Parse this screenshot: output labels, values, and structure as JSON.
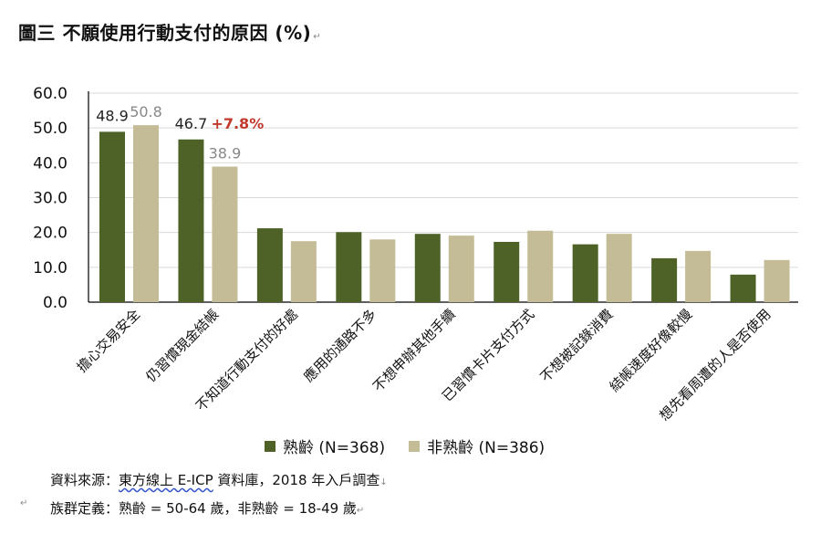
{
  "title": "圖三  不願使用行動支付的原因  (%)",
  "colors": {
    "mature": "#4e6228",
    "nonmature": "#c4bc96",
    "axis": "#000000",
    "grid": "#d9d9d9",
    "highlight": "#c0392b",
    "label_gray": "#888888"
  },
  "legend": {
    "mature": "熟齡 (N=368)",
    "nonmature": "非熟齡 (N=386)"
  },
  "source": {
    "prefix": "資料來源：",
    "link": "東方線上 E-ICP",
    "suffix": " 資料庫，2018 年入戶調查"
  },
  "definition": "族群定義：熟齡 = 50-64 歲，非熟齡 = 18-49 歲",
  "chart_data": {
    "type": "bar",
    "title": "圖三  不願使用行動支付的原因  (%)",
    "xlabel": "",
    "ylabel": "",
    "ylim": [
      0,
      60
    ],
    "yticks": [
      "0.0",
      "10.0",
      "20.0",
      "30.0",
      "40.0",
      "50.0",
      "60.0"
    ],
    "grid": true,
    "legend_position": "bottom",
    "categories": [
      "擔心交易安全",
      "仍習慣現金結帳",
      "不知道行動支付的好處",
      "應用的通路不多",
      "不想申辦其他手續",
      "已習慣卡片支付方式",
      "不想被記錄消費",
      "結帳速度好像較慢",
      "想先看周遭的人是否使用"
    ],
    "series": [
      {
        "name": "熟齡 (N=368)",
        "values": [
          48.9,
          46.7,
          21.2,
          20.1,
          19.6,
          17.3,
          16.6,
          12.6,
          7.9
        ]
      },
      {
        "name": "非熟齡 (N=386)",
        "values": [
          50.8,
          38.9,
          17.5,
          18.0,
          19.1,
          20.5,
          19.6,
          14.7,
          12.1
        ]
      }
    ],
    "data_labels": {
      "mature": [
        "48.9",
        "46.7"
      ],
      "nonmature": [
        "50.8",
        "38.9"
      ]
    },
    "annotation": "+7.8%"
  }
}
